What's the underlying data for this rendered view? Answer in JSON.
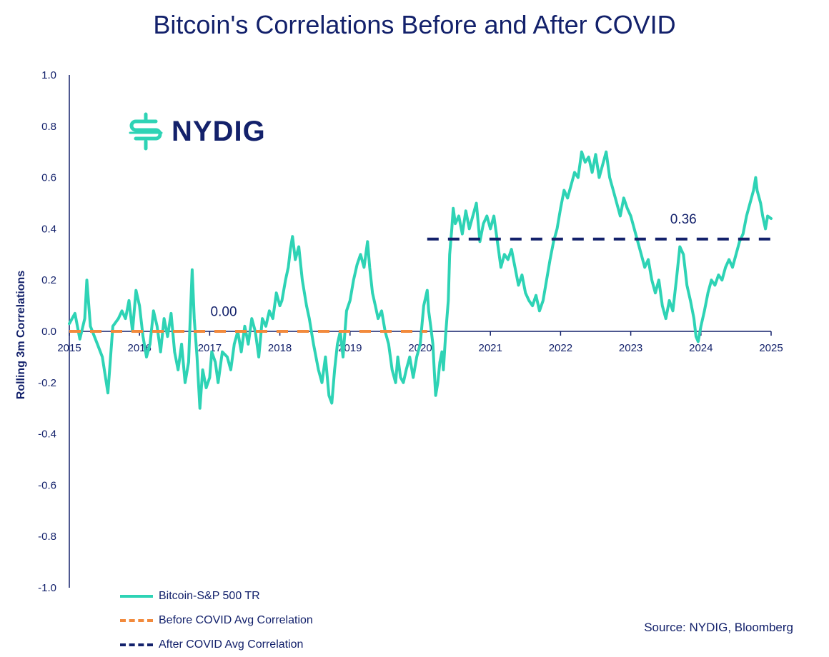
{
  "title": "Bitcoin's Correlations Before and After COVID",
  "logo": {
    "text": "NYDIG",
    "icon": "nydig-logo-icon"
  },
  "source": "Source: NYDIG, Bloomberg",
  "legend": [
    {
      "label": "Bitcoin-S&P 500 TR",
      "color": "#2ed3b5",
      "style": "solid"
    },
    {
      "label": "Before COVID Avg Correlation",
      "color": "#f28a3c",
      "style": "dashed"
    },
    {
      "label": "After COVID Avg Correlation",
      "color": "#13216b",
      "style": "dashed"
    }
  ],
  "chart_data": {
    "type": "line",
    "title": "Bitcoin's Correlations Before and After COVID",
    "ylabel": "Rolling 3m Correlations",
    "xlabel": "",
    "ylim": [
      -1.0,
      1.0
    ],
    "xlim": [
      2015,
      2025
    ],
    "yticks": [
      "1.0",
      "0.8",
      "0.6",
      "0.4",
      "0.2",
      "0.0",
      "-0.2",
      "-0.4",
      "-0.6",
      "-0.8",
      "-1.0"
    ],
    "xticks": [
      "2015",
      "2016",
      "2017",
      "2018",
      "2019",
      "2020",
      "2021",
      "2022",
      "2023",
      "2024",
      "2025"
    ],
    "colors": {
      "series": "#2ed3b5",
      "before": "#f28a3c",
      "after": "#13216b",
      "axis": "#13216b"
    },
    "series": [
      {
        "name": "Bitcoin-S&P 500 TR",
        "points": [
          [
            2015.0,
            0.03
          ],
          [
            2015.08,
            0.07
          ],
          [
            2015.15,
            -0.03
          ],
          [
            2015.22,
            0.05
          ],
          [
            2015.25,
            0.2
          ],
          [
            2015.3,
            0.02
          ],
          [
            2015.4,
            -0.05
          ],
          [
            2015.47,
            -0.1
          ],
          [
            2015.55,
            -0.24
          ],
          [
            2015.62,
            0.02
          ],
          [
            2015.7,
            0.05
          ],
          [
            2015.75,
            0.08
          ],
          [
            2015.8,
            0.05
          ],
          [
            2015.85,
            0.12
          ],
          [
            2015.9,
            0.0
          ],
          [
            2015.95,
            0.16
          ],
          [
            2016.0,
            0.1
          ],
          [
            2016.05,
            -0.02
          ],
          [
            2016.1,
            -0.1
          ],
          [
            2016.15,
            -0.05
          ],
          [
            2016.2,
            0.08
          ],
          [
            2016.25,
            0.02
          ],
          [
            2016.3,
            -0.08
          ],
          [
            2016.35,
            0.05
          ],
          [
            2016.4,
            -0.02
          ],
          [
            2016.45,
            0.07
          ],
          [
            2016.5,
            -0.08
          ],
          [
            2016.55,
            -0.15
          ],
          [
            2016.6,
            -0.05
          ],
          [
            2016.65,
            -0.2
          ],
          [
            2016.7,
            -0.12
          ],
          [
            2016.72,
            0.03
          ],
          [
            2016.75,
            0.24
          ],
          [
            2016.78,
            0.05
          ],
          [
            2016.82,
            -0.1
          ],
          [
            2016.86,
            -0.3
          ],
          [
            2016.9,
            -0.15
          ],
          [
            2016.95,
            -0.22
          ],
          [
            2017.0,
            -0.18
          ],
          [
            2017.03,
            -0.08
          ],
          [
            2017.08,
            -0.12
          ],
          [
            2017.12,
            -0.2
          ],
          [
            2017.18,
            -0.08
          ],
          [
            2017.25,
            -0.1
          ],
          [
            2017.3,
            -0.15
          ],
          [
            2017.35,
            -0.05
          ],
          [
            2017.4,
            0.0
          ],
          [
            2017.45,
            -0.08
          ],
          [
            2017.5,
            0.02
          ],
          [
            2017.55,
            -0.05
          ],
          [
            2017.6,
            0.05
          ],
          [
            2017.65,
            0.0
          ],
          [
            2017.7,
            -0.1
          ],
          [
            2017.75,
            0.05
          ],
          [
            2017.8,
            0.02
          ],
          [
            2017.85,
            0.08
          ],
          [
            2017.9,
            0.05
          ],
          [
            2017.95,
            0.15
          ],
          [
            2018.0,
            0.1
          ],
          [
            2018.03,
            0.12
          ],
          [
            2018.08,
            0.2
          ],
          [
            2018.12,
            0.25
          ],
          [
            2018.15,
            0.32
          ],
          [
            2018.18,
            0.37
          ],
          [
            2018.22,
            0.28
          ],
          [
            2018.27,
            0.33
          ],
          [
            2018.32,
            0.2
          ],
          [
            2018.38,
            0.1
          ],
          [
            2018.42,
            0.05
          ],
          [
            2018.48,
            -0.05
          ],
          [
            2018.55,
            -0.15
          ],
          [
            2018.6,
            -0.2
          ],
          [
            2018.65,
            -0.1
          ],
          [
            2018.7,
            -0.25
          ],
          [
            2018.74,
            -0.28
          ],
          [
            2018.78,
            -0.15
          ],
          [
            2018.82,
            -0.05
          ],
          [
            2018.86,
            0.0
          ],
          [
            2018.9,
            -0.1
          ],
          [
            2018.95,
            0.08
          ],
          [
            2019.0,
            0.12
          ],
          [
            2019.05,
            0.2
          ],
          [
            2019.1,
            0.26
          ],
          [
            2019.15,
            0.3
          ],
          [
            2019.2,
            0.25
          ],
          [
            2019.25,
            0.35
          ],
          [
            2019.28,
            0.25
          ],
          [
            2019.32,
            0.15
          ],
          [
            2019.36,
            0.1
          ],
          [
            2019.4,
            0.05
          ],
          [
            2019.45,
            0.08
          ],
          [
            2019.5,
            0.0
          ],
          [
            2019.55,
            -0.05
          ],
          [
            2019.6,
            -0.15
          ],
          [
            2019.65,
            -0.2
          ],
          [
            2019.68,
            -0.1
          ],
          [
            2019.72,
            -0.18
          ],
          [
            2019.76,
            -0.2
          ],
          [
            2019.8,
            -0.15
          ],
          [
            2019.85,
            -0.1
          ],
          [
            2019.9,
            -0.18
          ],
          [
            2019.95,
            -0.1
          ],
          [
            2020.0,
            -0.05
          ],
          [
            2020.05,
            0.1
          ],
          [
            2020.1,
            0.16
          ],
          [
            2020.12,
            0.08
          ],
          [
            2020.15,
            0.02
          ],
          [
            2020.18,
            -0.05
          ],
          [
            2020.2,
            -0.15
          ],
          [
            2020.22,
            -0.25
          ],
          [
            2020.25,
            -0.2
          ],
          [
            2020.28,
            -0.12
          ],
          [
            2020.31,
            -0.08
          ],
          [
            2020.33,
            -0.15
          ],
          [
            2020.36,
            -0.02
          ],
          [
            2020.38,
            0.05
          ],
          [
            2020.4,
            0.12
          ],
          [
            2020.42,
            0.3
          ],
          [
            2020.45,
            0.4
          ],
          [
            2020.47,
            0.48
          ],
          [
            2020.5,
            0.42
          ],
          [
            2020.55,
            0.45
          ],
          [
            2020.6,
            0.38
          ],
          [
            2020.65,
            0.47
          ],
          [
            2020.7,
            0.4
          ],
          [
            2020.75,
            0.45
          ],
          [
            2020.8,
            0.5
          ],
          [
            2020.85,
            0.35
          ],
          [
            2020.9,
            0.42
          ],
          [
            2020.95,
            0.45
          ],
          [
            2021.0,
            0.4
          ],
          [
            2021.05,
            0.45
          ],
          [
            2021.1,
            0.35
          ],
          [
            2021.15,
            0.25
          ],
          [
            2021.2,
            0.3
          ],
          [
            2021.25,
            0.28
          ],
          [
            2021.3,
            0.32
          ],
          [
            2021.35,
            0.25
          ],
          [
            2021.4,
            0.18
          ],
          [
            2021.45,
            0.22
          ],
          [
            2021.5,
            0.15
          ],
          [
            2021.55,
            0.12
          ],
          [
            2021.6,
            0.1
          ],
          [
            2021.65,
            0.14
          ],
          [
            2021.7,
            0.08
          ],
          [
            2021.75,
            0.12
          ],
          [
            2021.8,
            0.2
          ],
          [
            2021.85,
            0.28
          ],
          [
            2021.9,
            0.35
          ],
          [
            2021.95,
            0.4
          ],
          [
            2022.0,
            0.48
          ],
          [
            2022.05,
            0.55
          ],
          [
            2022.1,
            0.52
          ],
          [
            2022.15,
            0.57
          ],
          [
            2022.2,
            0.62
          ],
          [
            2022.25,
            0.6
          ],
          [
            2022.3,
            0.7
          ],
          [
            2022.35,
            0.66
          ],
          [
            2022.4,
            0.68
          ],
          [
            2022.45,
            0.62
          ],
          [
            2022.5,
            0.69
          ],
          [
            2022.55,
            0.6
          ],
          [
            2022.6,
            0.65
          ],
          [
            2022.65,
            0.7
          ],
          [
            2022.7,
            0.6
          ],
          [
            2022.75,
            0.55
          ],
          [
            2022.8,
            0.5
          ],
          [
            2022.85,
            0.45
          ],
          [
            2022.9,
            0.52
          ],
          [
            2022.95,
            0.48
          ],
          [
            2023.0,
            0.45
          ],
          [
            2023.05,
            0.4
          ],
          [
            2023.1,
            0.35
          ],
          [
            2023.15,
            0.3
          ],
          [
            2023.2,
            0.25
          ],
          [
            2023.25,
            0.28
          ],
          [
            2023.3,
            0.2
          ],
          [
            2023.35,
            0.15
          ],
          [
            2023.4,
            0.2
          ],
          [
            2023.45,
            0.1
          ],
          [
            2023.5,
            0.05
          ],
          [
            2023.55,
            0.12
          ],
          [
            2023.6,
            0.08
          ],
          [
            2023.65,
            0.2
          ],
          [
            2023.7,
            0.33
          ],
          [
            2023.75,
            0.3
          ],
          [
            2023.8,
            0.18
          ],
          [
            2023.85,
            0.12
          ],
          [
            2023.9,
            0.05
          ],
          [
            2023.93,
            -0.02
          ],
          [
            2023.96,
            -0.04
          ],
          [
            2024.0,
            0.02
          ],
          [
            2024.05,
            0.08
          ],
          [
            2024.1,
            0.15
          ],
          [
            2024.15,
            0.2
          ],
          [
            2024.2,
            0.18
          ],
          [
            2024.25,
            0.22
          ],
          [
            2024.3,
            0.2
          ],
          [
            2024.35,
            0.25
          ],
          [
            2024.4,
            0.28
          ],
          [
            2024.45,
            0.25
          ],
          [
            2024.5,
            0.3
          ],
          [
            2024.55,
            0.35
          ],
          [
            2024.6,
            0.38
          ],
          [
            2024.65,
            0.45
          ],
          [
            2024.7,
            0.5
          ],
          [
            2024.75,
            0.55
          ],
          [
            2024.78,
            0.6
          ],
          [
            2024.8,
            0.55
          ],
          [
            2024.85,
            0.5
          ],
          [
            2024.88,
            0.45
          ],
          [
            2024.92,
            0.4
          ],
          [
            2024.95,
            0.45
          ],
          [
            2025.0,
            0.44
          ]
        ]
      },
      {
        "name": "Before COVID Avg Correlation",
        "x": [
          2015,
          2020.1
        ],
        "value": 0.0,
        "label": "0.00"
      },
      {
        "name": "After COVID Avg Correlation",
        "x": [
          2020.1,
          2025
        ],
        "value": 0.36,
        "label": "0.36"
      }
    ],
    "annotations": [
      {
        "text": "0.00",
        "x": 2017.2,
        "y": 0.06
      },
      {
        "text": "0.36",
        "x": 2023.75,
        "y": 0.42
      }
    ]
  }
}
